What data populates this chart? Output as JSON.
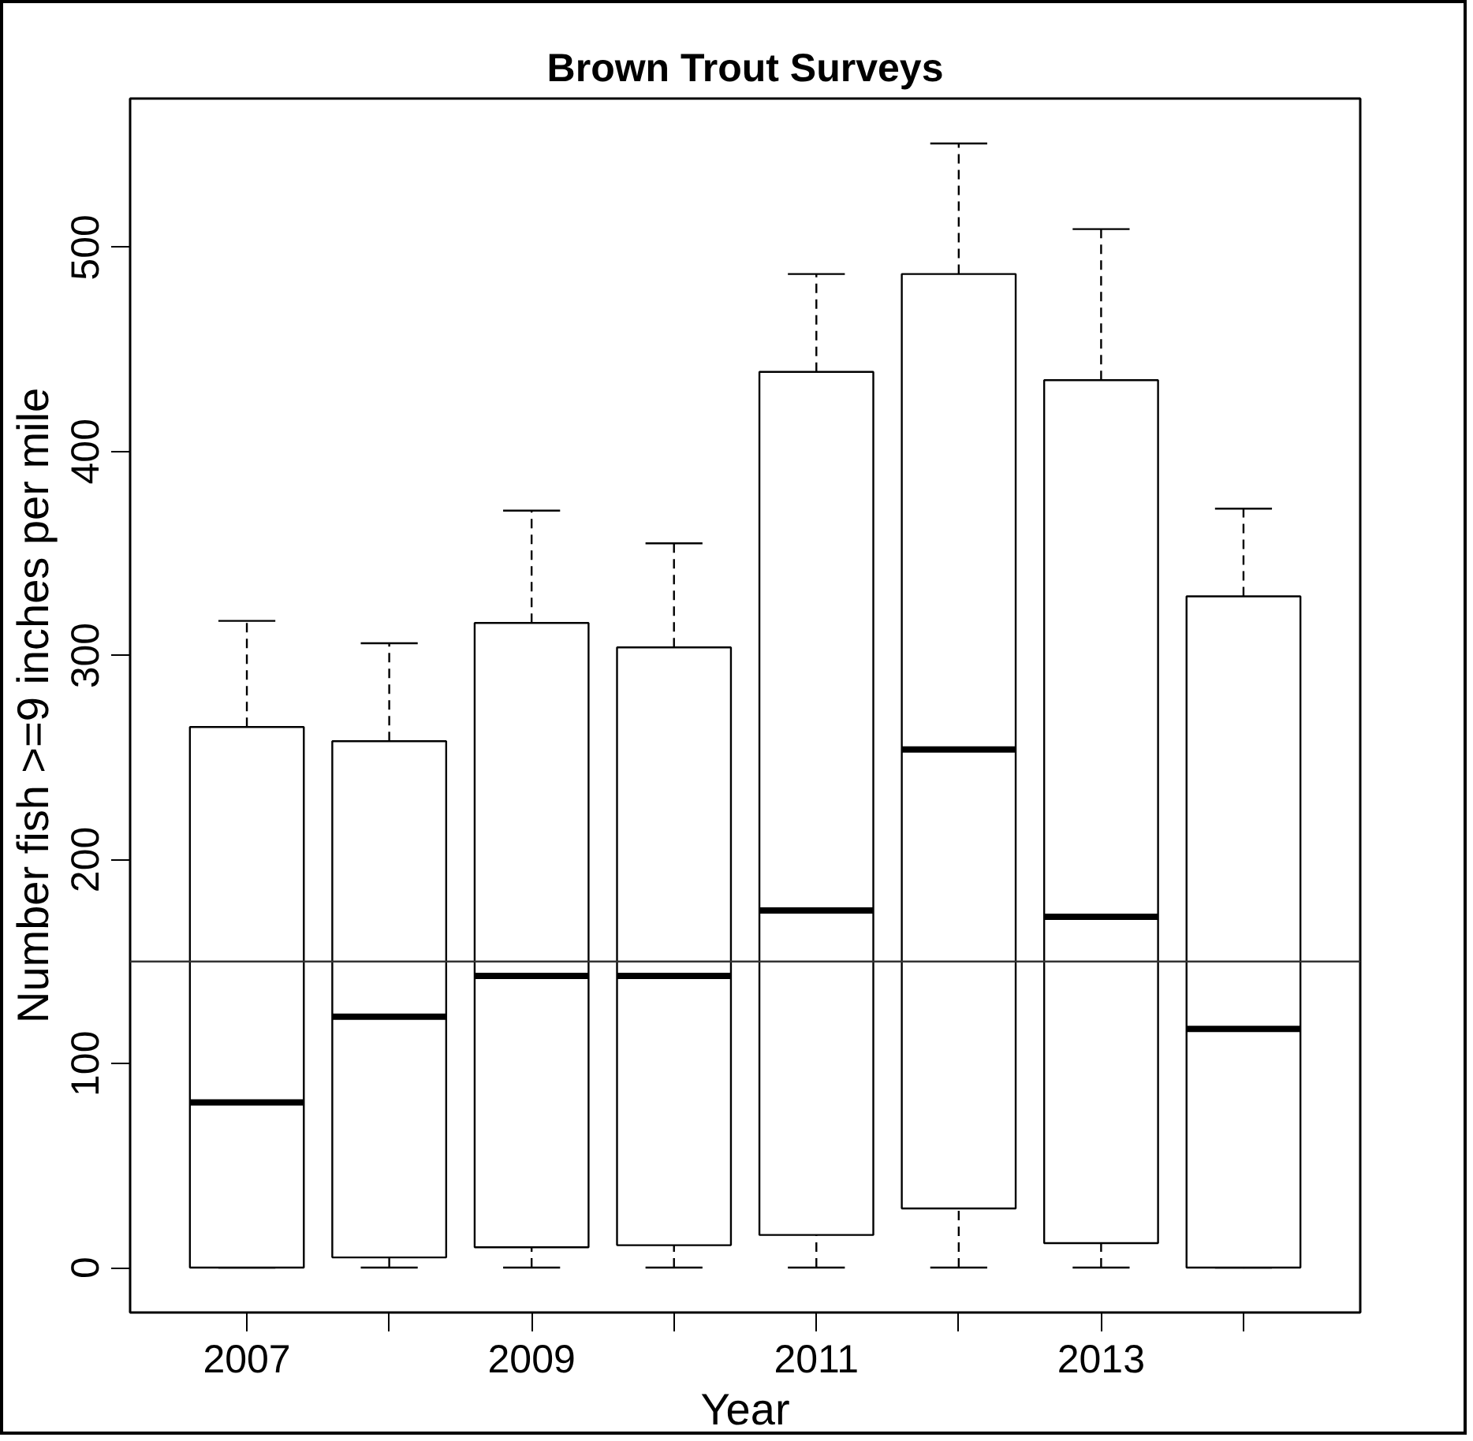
{
  "chart_data": {
    "type": "box",
    "title": "Brown Trout Surveys",
    "xlabel": "Year",
    "ylabel": "Number fish >=9 inches per mile",
    "categories": [
      "2007",
      null,
      "2009",
      null,
      "2011",
      null,
      "2013",
      null
    ],
    "boxes": [
      {
        "low": 0,
        "q1": 0,
        "median": 81,
        "q3": 265,
        "high": 317
      },
      {
        "low": 0,
        "q1": 5,
        "median": 123,
        "q3": 258,
        "high": 306
      },
      {
        "low": 0,
        "q1": 10,
        "median": 143,
        "q3": 316,
        "high": 371
      },
      {
        "low": 0,
        "q1": 11,
        "median": 143,
        "q3": 304,
        "high": 355
      },
      {
        "low": 0,
        "q1": 16,
        "median": 175,
        "q3": 439,
        "high": 487
      },
      {
        "low": 0,
        "q1": 29,
        "median": 254,
        "q3": 487,
        "high": 551
      },
      {
        "low": 0,
        "q1": 12,
        "median": 172,
        "q3": 435,
        "high": 509
      },
      {
        "low": 0,
        "q1": 0,
        "median": 117,
        "q3": 329,
        "high": 372
      }
    ],
    "ylim": [
      -22,
      573
    ],
    "yticks": [
      0,
      100,
      200,
      300,
      400,
      500
    ],
    "ref_lines": [
      {
        "axis": "y",
        "value": 150,
        "color": "#333333"
      }
    ],
    "grid": false
  }
}
